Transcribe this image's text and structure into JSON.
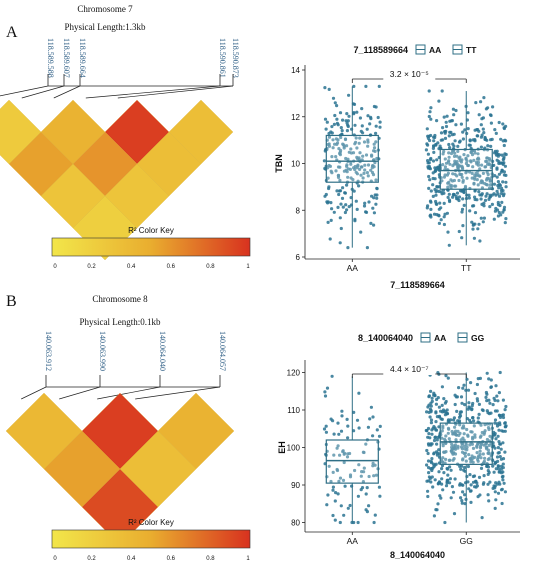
{
  "chart_data": [
    {
      "panel": "A",
      "type": "heatmap",
      "title": "Chromosome 7",
      "subtitle": "Physical Length:1.3kb",
      "snps": [
        "118.589.588",
        "118.589.607",
        "118.589.664",
        "118.590.861",
        "118.590.873"
      ],
      "r2": [
        [
          0.25,
          0.45,
          0.95,
          0.35
        ],
        [
          0.55,
          0.6,
          0.35
        ],
        [
          0.3,
          0.3
        ],
        [
          0.2
        ]
      ],
      "color_key": {
        "label": "R² Color Key",
        "ticks": [
          "0",
          "0.2",
          "0.4",
          "0.6",
          "0.8",
          "1"
        ],
        "colors": [
          "#f2e64a",
          "#e9ad2f",
          "#d8321f"
        ]
      }
    },
    {
      "panel": "A",
      "type": "box",
      "legend_title": "7_118589664",
      "legend": [
        "AA",
        "TT"
      ],
      "categories": [
        "AA",
        "TT"
      ],
      "xlabel": "7_118589664",
      "ylabel": "TBN",
      "ylim": [
        6,
        14
      ],
      "yticks": [
        6,
        8,
        10,
        12,
        14
      ],
      "series": [
        {
          "category": "AA",
          "min": 6.4,
          "q1": 9.2,
          "median": 10.1,
          "q3": 11.2,
          "max": 13.3,
          "n": 260
        },
        {
          "category": "TT",
          "min": 6.5,
          "q1": 8.9,
          "median": 9.7,
          "q3": 10.6,
          "max": 13.1,
          "n": 520
        }
      ],
      "pvalue": "3.2 × 10⁻⁵"
    },
    {
      "panel": "B",
      "type": "heatmap",
      "title": "Chromosome 8",
      "subtitle": "Physical Length:0.1kb",
      "snps": [
        "140.063.912",
        "140.063.990",
        "140.064.040",
        "140.064.057"
      ],
      "r2": [
        [
          0.4,
          0.95,
          0.45
        ],
        [
          0.55,
          0.35
        ],
        [
          0.9
        ]
      ],
      "color_key": {
        "label": "R² Color Key",
        "ticks": [
          "0",
          "0.2",
          "0.4",
          "0.6",
          "0.8",
          "1"
        ],
        "colors": [
          "#f2e64a",
          "#e9ad2f",
          "#d8321f"
        ]
      }
    },
    {
      "panel": "B",
      "type": "box",
      "legend_title": "8_140064040",
      "legend": [
        "AA",
        "GG"
      ],
      "categories": [
        "AA",
        "GG"
      ],
      "xlabel": "8_140064040",
      "ylabel": "EH",
      "ylim": [
        78,
        122
      ],
      "yticks": [
        80,
        90,
        100,
        110,
        120
      ],
      "series": [
        {
          "category": "AA",
          "min": 80,
          "q1": 90.5,
          "median": 96.5,
          "q3": 102,
          "max": 119,
          "n": 110
        },
        {
          "category": "GG",
          "min": 80,
          "q1": 95.5,
          "median": 101.5,
          "q3": 106.5,
          "max": 120,
          "n": 560
        }
      ],
      "pvalue": "4.4 × 10⁻⁷"
    }
  ],
  "panel_labels": [
    "A",
    "B"
  ],
  "point_color": "#2a7392",
  "box_color": "#2f6f86",
  "snp_text_color": "#2f5f86"
}
